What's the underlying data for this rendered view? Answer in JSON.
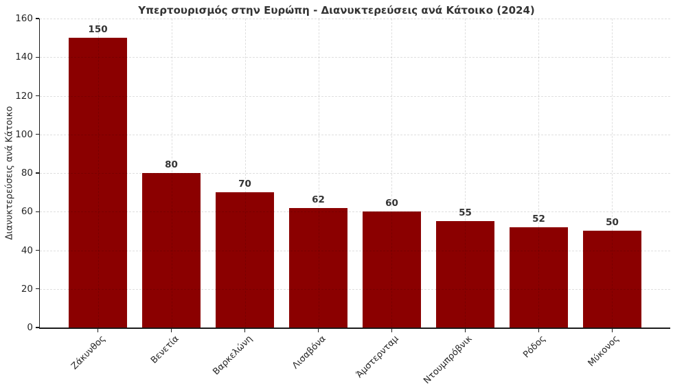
{
  "figure": {
    "background_color": "#ffffff",
    "text_color": "#262626",
    "title_color": "#333333"
  },
  "chart_data": {
    "type": "bar",
    "title": "Υπερτουρισμός στην Ευρώπη - Διανυκτερεύσεις ανά Κάτοικο (2024)",
    "xlabel": "",
    "ylabel": "Διανυκτερεύσεις ανά Κάτοικο",
    "categories": [
      "Ζάκυνθος",
      "Βενετία",
      "Βαρκελώνη",
      "Λισαβόνα",
      "Άμστερνταμ",
      "Ντουμπρόβνικ",
      "Ρόδος",
      "Μύκονος"
    ],
    "values": [
      150,
      80,
      70,
      62,
      60,
      55,
      52,
      50
    ],
    "bar_value_labels": [
      "150",
      "80",
      "70",
      "62",
      "60",
      "55",
      "52",
      "50"
    ],
    "bar_color": "#8B0000",
    "ylim": [
      0,
      160
    ],
    "yticks": [
      0,
      20,
      40,
      60,
      80,
      100,
      120,
      140,
      160
    ],
    "grid": "dashed, both axes, drawn over bars",
    "legend": "none",
    "x_tick_label_rotation": 45
  }
}
